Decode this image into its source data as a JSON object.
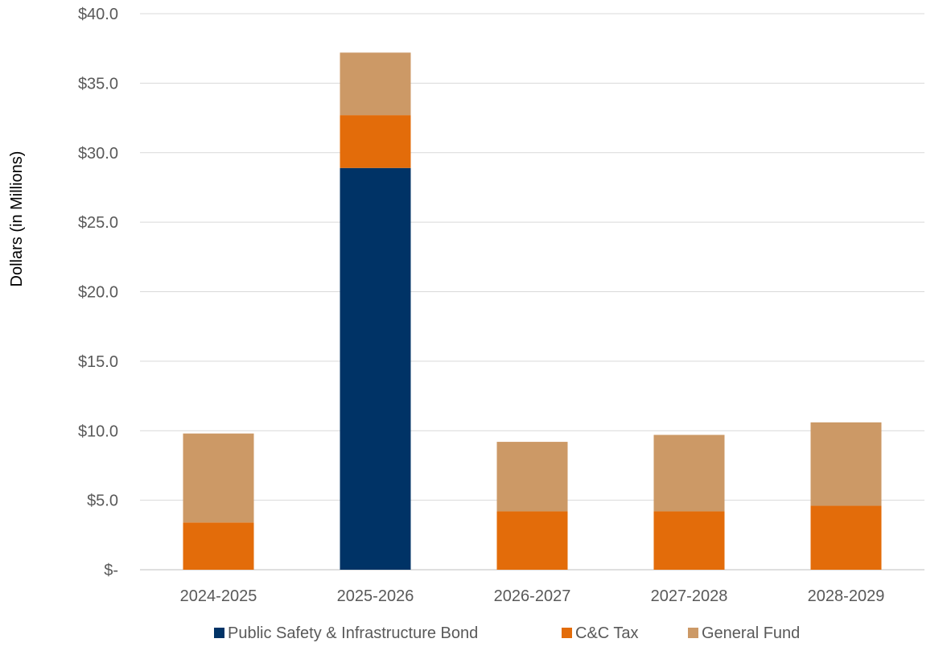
{
  "chart_data": {
    "type": "bar",
    "stacked": true,
    "title": "",
    "xlabel": "",
    "ylabel": "Dollars (in Millions)",
    "ylim": [
      0,
      40
    ],
    "yticks": [
      0,
      5,
      10,
      15,
      20,
      25,
      30,
      35,
      40
    ],
    "ytick_labels": [
      "$-",
      "$5.0",
      "$10.0",
      "$15.0",
      "$20.0",
      "$25.0",
      "$30.0",
      "$35.0",
      "$40.0"
    ],
    "categories": [
      "2024-2025",
      "2025-2026",
      "2026-2027",
      "2027-2028",
      "2028-2029"
    ],
    "series": [
      {
        "name": "Public Safety & Infrastructure Bond",
        "color": "#003366",
        "values": [
          0,
          28.9,
          0,
          0,
          0
        ]
      },
      {
        "name": "C&C Tax",
        "color": "#E36C0A",
        "values": [
          3.4,
          3.8,
          4.2,
          4.2,
          4.6
        ]
      },
      {
        "name": "General Fund",
        "color": "#CC9966",
        "values": [
          6.4,
          4.5,
          5.0,
          5.5,
          6.0
        ]
      }
    ],
    "grid": true,
    "legend_position": "bottom"
  }
}
